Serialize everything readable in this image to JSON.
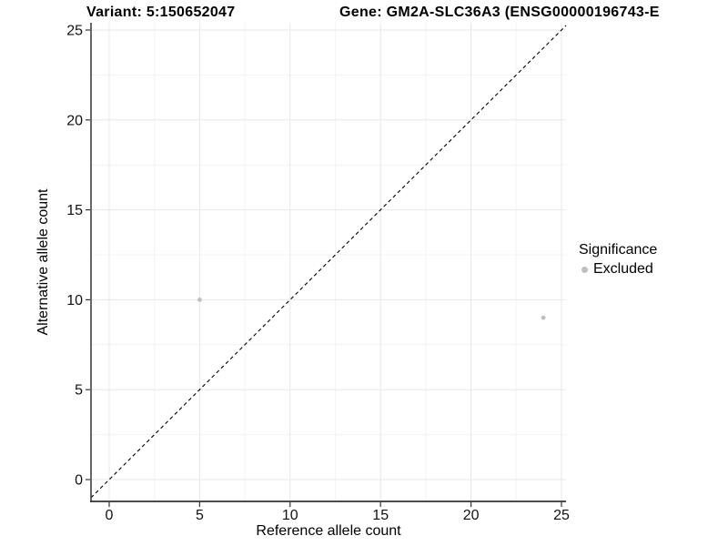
{
  "titles": {
    "variant": "Variant: 5:150652047",
    "gene": "Gene: GM2A-SLC36A3 (ENSG00000196743-E"
  },
  "chart_data": {
    "type": "scatter",
    "title_left": "Variant: 5:150652047",
    "title_right": "Gene: GM2A-SLC36A3 (ENSG00000196743-E",
    "xlabel": "Reference allele count",
    "ylabel": "Alternative allele count",
    "xlim": [
      0,
      25
    ],
    "ylim": [
      0,
      25
    ],
    "x_ticks": [
      0,
      5,
      10,
      15,
      20,
      25
    ],
    "y_ticks": [
      0,
      5,
      10,
      15,
      20,
      25
    ],
    "grid": "major+minor",
    "reference_line": {
      "type": "identity",
      "slope": 1,
      "intercept": 0,
      "style": "dashed",
      "color": "#000000"
    },
    "series": [
      {
        "name": "Excluded",
        "color": "#bebebe",
        "points": [
          {
            "x": 5,
            "y": 10
          },
          {
            "x": 24,
            "y": 9
          }
        ]
      }
    ],
    "legend": {
      "title": "Significance",
      "position": "right",
      "entries": [
        {
          "label": "Excluded",
          "color": "#bebebe"
        }
      ]
    },
    "style": {
      "grid_major_color": "#e7e7e7",
      "grid_minor_color": "#f3f3f3",
      "axis_line_color": "#333333",
      "tick_color": "#333333",
      "tick_label_color": "#111111",
      "background": "#ffffff"
    }
  }
}
